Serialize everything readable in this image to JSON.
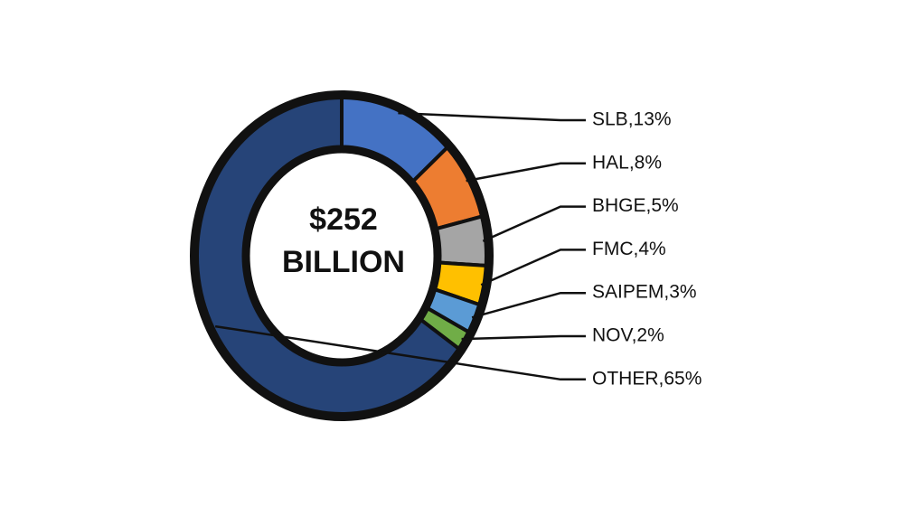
{
  "chart_data": {
    "type": "donut",
    "center_text": [
      "$252",
      "BILLION"
    ],
    "values": [
      13,
      8,
      5,
      4,
      3,
      2,
      65
    ],
    "value_labels": [
      "SLB,13%",
      "HAL,8%",
      "BHGE,5%",
      "FMC,4%",
      "SAIPEM,3%",
      "NOV,2%",
      "OTHER,65%"
    ],
    "colors": [
      "#4472c4",
      "#ed7d31",
      "#a5a5a5",
      "#ffc000",
      "#5b9bd5",
      "#70ad47",
      "#264478"
    ]
  }
}
